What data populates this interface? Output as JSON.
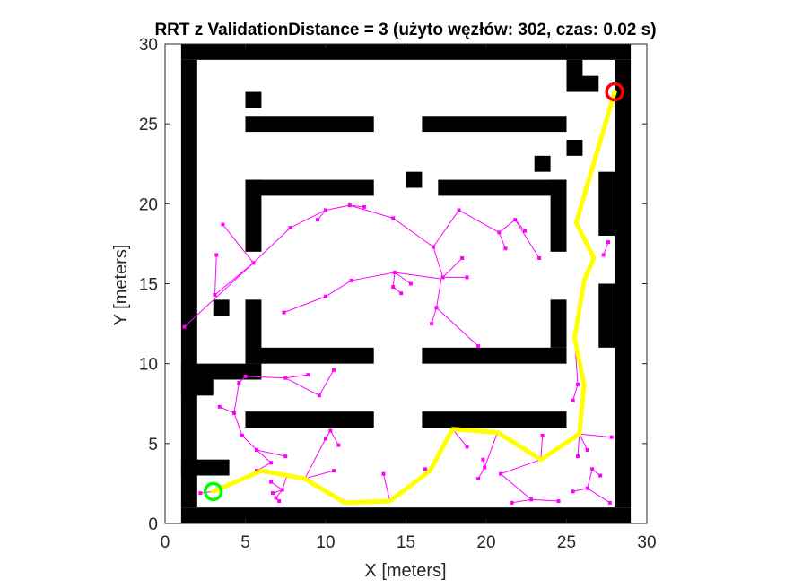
{
  "chart_data": {
    "type": "scatter",
    "title": "RRT z ValidationDistance = 3 (użyto węzłów: 302, czas: 0.02 s)",
    "xlabel": "X [meters]",
    "ylabel": "Y [meters]",
    "xlim": [
      0,
      30
    ],
    "ylim": [
      0,
      30
    ],
    "x_ticks": [
      "0",
      "5",
      "10",
      "15",
      "20",
      "25",
      "30"
    ],
    "y_ticks": [
      "0",
      "5",
      "10",
      "15",
      "20",
      "25",
      "30"
    ],
    "grid": false,
    "legend": "none",
    "colors": {
      "obstacle": "#000000",
      "tree": "#ff00ff",
      "path": "#ffff00",
      "start": "#00ff00",
      "goal": "#ff0000",
      "axis": "#262626"
    },
    "start": [
      3,
      2
    ],
    "goal": [
      28,
      27
    ],
    "obstacles": [
      [
        1,
        29,
        29,
        30
      ],
      [
        1,
        0,
        29,
        1
      ],
      [
        1,
        1,
        2,
        29
      ],
      [
        28,
        1,
        29,
        29
      ],
      [
        5,
        26,
        6,
        27
      ],
      [
        5,
        24.5,
        13,
        25.5
      ],
      [
        16,
        24.5,
        25,
        25.5
      ],
      [
        25,
        27,
        26,
        29
      ],
      [
        25,
        27,
        27,
        28
      ],
      [
        25,
        23,
        26,
        24
      ],
      [
        23,
        22,
        24,
        23
      ],
      [
        15,
        21,
        16,
        22
      ],
      [
        5,
        20.5,
        13,
        21.5
      ],
      [
        17,
        20.5,
        25,
        21.5
      ],
      [
        5,
        17,
        6,
        21.5
      ],
      [
        24,
        17,
        25,
        21.5
      ],
      [
        27,
        18,
        28,
        22
      ],
      [
        3,
        13,
        4,
        14
      ],
      [
        27,
        11,
        28,
        15
      ],
      [
        5,
        10,
        6,
        14
      ],
      [
        24,
        11,
        25,
        14
      ],
      [
        5,
        10,
        13,
        11
      ],
      [
        16,
        10,
        25,
        11
      ],
      [
        1,
        9,
        6,
        10
      ],
      [
        1,
        8,
        3,
        9
      ],
      [
        5,
        6,
        13,
        7
      ],
      [
        16,
        6,
        25,
        7
      ],
      [
        1,
        3,
        4,
        4
      ]
    ],
    "path": [
      [
        3,
        2
      ],
      [
        6,
        3.3
      ],
      [
        8.7,
        2.8
      ],
      [
        11.2,
        1.3
      ],
      [
        14,
        1.4
      ],
      [
        16.5,
        3.3
      ],
      [
        17.9,
        5.9
      ],
      [
        20.7,
        5.7
      ],
      [
        23.4,
        4
      ],
      [
        25.8,
        5.6
      ],
      [
        26.1,
        8.7
      ],
      [
        25.5,
        11.6
      ],
      [
        26.1,
        15.2
      ],
      [
        26.7,
        16.6
      ],
      [
        25.6,
        18.8
      ],
      [
        28,
        27
      ]
    ],
    "tree_edges": [
      [
        [
          1.2,
          12.3
        ],
        [
          5.5,
          16.3
        ]
      ],
      [
        [
          5.5,
          16.3
        ],
        [
          7.8,
          18.5
        ]
      ],
      [
        [
          7.8,
          18.5
        ],
        [
          10,
          19.6
        ]
      ],
      [
        [
          10,
          19.6
        ],
        [
          11.5,
          19.9
        ]
      ],
      [
        [
          11.5,
          19.9
        ],
        [
          14.2,
          19.1
        ]
      ],
      [
        [
          14.2,
          19.1
        ],
        [
          16.7,
          17.3
        ]
      ],
      [
        [
          16.7,
          17.3
        ],
        [
          17.3,
          15.4
        ]
      ],
      [
        [
          17.3,
          15.4
        ],
        [
          18.5,
          16.6
        ]
      ],
      [
        [
          17.3,
          15.4
        ],
        [
          18.8,
          15.4
        ]
      ],
      [
        [
          16.7,
          17.3
        ],
        [
          18.3,
          19.6
        ]
      ],
      [
        [
          18.3,
          19.6
        ],
        [
          20.8,
          18.2
        ]
      ],
      [
        [
          20.8,
          18.2
        ],
        [
          21.2,
          17.2
        ]
      ],
      [
        [
          20.8,
          18.2
        ],
        [
          21.8,
          19
        ]
      ],
      [
        [
          21.8,
          19
        ],
        [
          22.4,
          18.3
        ]
      ],
      [
        [
          21.8,
          19
        ],
        [
          23.3,
          16.6
        ]
      ],
      [
        [
          11.5,
          19.9
        ],
        [
          12.4,
          19.8
        ]
      ],
      [
        [
          10,
          19.6
        ],
        [
          9.5,
          19
        ]
      ],
      [
        [
          5.5,
          16.3
        ],
        [
          3.1,
          14.3
        ]
      ],
      [
        [
          5.5,
          16.3
        ],
        [
          3.6,
          18.7
        ]
      ],
      [
        [
          3.1,
          14.3
        ],
        [
          3.2,
          16.8
        ]
      ],
      [
        [
          7.4,
          13.2
        ],
        [
          10,
          14.2
        ]
      ],
      [
        [
          10,
          14.2
        ],
        [
          11.6,
          15.2
        ]
      ],
      [
        [
          11.6,
          15.2
        ],
        [
          14.3,
          15.7
        ]
      ],
      [
        [
          14.3,
          15.7
        ],
        [
          17.2,
          15.3
        ]
      ],
      [
        [
          14.3,
          15.7
        ],
        [
          14.2,
          14.8
        ]
      ],
      [
        [
          14.2,
          14.8
        ],
        [
          14.7,
          14.4
        ]
      ],
      [
        [
          14.3,
          15.7
        ],
        [
          15.3,
          15
        ]
      ],
      [
        [
          17.2,
          15.3
        ],
        [
          16.9,
          13.5
        ]
      ],
      [
        [
          16.9,
          13.5
        ],
        [
          16.6,
          12.5
        ]
      ],
      [
        [
          16.9,
          13.5
        ],
        [
          19.5,
          11.1
        ]
      ],
      [
        [
          5,
          9.2
        ],
        [
          7.5,
          9.1
        ]
      ],
      [
        [
          7.5,
          9.1
        ],
        [
          8.9,
          9.3
        ]
      ],
      [
        [
          7.5,
          9.1
        ],
        [
          9.6,
          8
        ]
      ],
      [
        [
          9.6,
          8
        ],
        [
          10.5,
          9.6
        ]
      ],
      [
        [
          5,
          9.2
        ],
        [
          4.6,
          8.8
        ]
      ],
      [
        [
          4.6,
          8.8
        ],
        [
          4.3,
          6.9
        ]
      ],
      [
        [
          4.3,
          6.9
        ],
        [
          4.8,
          5.5
        ]
      ],
      [
        [
          4.3,
          6.9
        ],
        [
          3.4,
          7.3
        ]
      ],
      [
        [
          4.8,
          5.5
        ],
        [
          5.7,
          4.6
        ]
      ],
      [
        [
          5.7,
          4.6
        ],
        [
          7.5,
          4.2
        ]
      ],
      [
        [
          5.7,
          4.6
        ],
        [
          6.6,
          3.8
        ]
      ],
      [
        [
          6.6,
          3.8
        ],
        [
          5.7,
          3.3
        ]
      ],
      [
        [
          6.6,
          2.6
        ],
        [
          7.3,
          2.1
        ]
      ],
      [
        [
          7.3,
          2.1
        ],
        [
          7.6,
          3
        ]
      ],
      [
        [
          7.3,
          2.1
        ],
        [
          6.9,
          1.6
        ]
      ],
      [
        [
          6.9,
          1.6
        ],
        [
          7.1,
          1.4
        ]
      ],
      [
        [
          7.3,
          2.1
        ],
        [
          6.7,
          1.9
        ]
      ],
      [
        [
          8.7,
          2.8
        ],
        [
          10.5,
          3.3
        ]
      ],
      [
        [
          8.7,
          2.8
        ],
        [
          10,
          5.3
        ]
      ],
      [
        [
          10,
          5.3
        ],
        [
          10.3,
          5.8
        ]
      ],
      [
        [
          10.3,
          5.8
        ],
        [
          10.8,
          4.9
        ]
      ],
      [
        [
          14,
          1.4
        ],
        [
          13.6,
          3.1
        ]
      ],
      [
        [
          16.5,
          3.3
        ],
        [
          16.2,
          3.4
        ]
      ],
      [
        [
          17.9,
          5.9
        ],
        [
          18.8,
          4.8
        ]
      ],
      [
        [
          20.7,
          5.7
        ],
        [
          19.9,
          3.5
        ]
      ],
      [
        [
          19.9,
          3.5
        ],
        [
          19.5,
          2.8
        ]
      ],
      [
        [
          19.9,
          3.5
        ],
        [
          19.8,
          4
        ]
      ],
      [
        [
          23.4,
          4
        ],
        [
          20.9,
          3.1
        ]
      ],
      [
        [
          20.9,
          3.1
        ],
        [
          22.8,
          1.5
        ]
      ],
      [
        [
          22.8,
          1.5
        ],
        [
          21.6,
          1.3
        ]
      ],
      [
        [
          22.8,
          1.5
        ],
        [
          24.5,
          1.4
        ]
      ],
      [
        [
          23.4,
          4
        ],
        [
          23.5,
          5.5
        ]
      ],
      [
        [
          25.8,
          5.6
        ],
        [
          25.7,
          4.2
        ]
      ],
      [
        [
          25.8,
          5.6
        ],
        [
          27.8,
          5.4
        ]
      ],
      [
        [
          25.8,
          5.6
        ],
        [
          26.3,
          4.6
        ]
      ],
      [
        [
          26.3,
          2.2
        ],
        [
          27.7,
          1.3
        ]
      ],
      [
        [
          26.3,
          2.2
        ],
        [
          25.4,
          2
        ]
      ],
      [
        [
          26.3,
          2.2
        ],
        [
          26.6,
          3.4
        ]
      ],
      [
        [
          26.6,
          3.4
        ],
        [
          27.1,
          3
        ]
      ],
      [
        [
          25.5,
          11.6
        ],
        [
          25.7,
          8.7
        ]
      ],
      [
        [
          25.7,
          8.7
        ],
        [
          25.4,
          7.7
        ]
      ],
      [
        [
          27.3,
          16.8
        ],
        [
          27.6,
          17.6
        ]
      ],
      [
        [
          3,
          2
        ],
        [
          2.2,
          1.9
        ]
      ]
    ],
    "tree_nodes": [
      [
        1.2,
        12.3
      ],
      [
        3.1,
        14.3
      ],
      [
        3.6,
        18.7
      ],
      [
        3.2,
        16.8
      ],
      [
        5.5,
        16.3
      ],
      [
        7.8,
        18.5
      ],
      [
        10,
        19.6
      ],
      [
        11.5,
        19.9
      ],
      [
        12.4,
        19.8
      ],
      [
        9.5,
        19
      ],
      [
        14.2,
        19.1
      ],
      [
        16.7,
        17.3
      ],
      [
        17.3,
        15.4
      ],
      [
        18.5,
        16.6
      ],
      [
        18.8,
        15.4
      ],
      [
        18.3,
        19.6
      ],
      [
        20.8,
        18.2
      ],
      [
        21.2,
        17.2
      ],
      [
        21.8,
        19
      ],
      [
        22.4,
        18.3
      ],
      [
        23.3,
        16.6
      ],
      [
        7.4,
        13.2
      ],
      [
        10,
        14.2
      ],
      [
        11.6,
        15.2
      ],
      [
        14.3,
        15.7
      ],
      [
        14.2,
        14.8
      ],
      [
        14.7,
        14.4
      ],
      [
        15.3,
        15
      ],
      [
        16.9,
        13.5
      ],
      [
        16.6,
        12.5
      ],
      [
        19.5,
        11.1
      ],
      [
        5,
        9.2
      ],
      [
        7.5,
        9.1
      ],
      [
        8.9,
        9.3
      ],
      [
        9.6,
        8
      ],
      [
        10.5,
        9.6
      ],
      [
        4.6,
        8.8
      ],
      [
        4.3,
        6.9
      ],
      [
        3.4,
        7.3
      ],
      [
        4.8,
        5.5
      ],
      [
        5.7,
        4.6
      ],
      [
        7.5,
        4.2
      ],
      [
        6.6,
        3.8
      ],
      [
        5.7,
        3.3
      ],
      [
        6.6,
        2.6
      ],
      [
        7.3,
        2.1
      ],
      [
        7.6,
        3
      ],
      [
        6.9,
        1.6
      ],
      [
        7.1,
        1.4
      ],
      [
        6.7,
        1.9
      ],
      [
        10.5,
        3.3
      ],
      [
        10,
        5.3
      ],
      [
        10.3,
        5.8
      ],
      [
        10.8,
        4.9
      ],
      [
        13.6,
        3.1
      ],
      [
        16.2,
        3.4
      ],
      [
        18.8,
        4.8
      ],
      [
        19.9,
        3.5
      ],
      [
        19.5,
        2.8
      ],
      [
        19.8,
        4
      ],
      [
        20.9,
        3.1
      ],
      [
        22.8,
        1.5
      ],
      [
        21.6,
        1.3
      ],
      [
        24.5,
        1.4
      ],
      [
        23.5,
        5.5
      ],
      [
        25.7,
        4.2
      ],
      [
        27.8,
        5.4
      ],
      [
        26.3,
        4.6
      ],
      [
        26.3,
        2.2
      ],
      [
        27.7,
        1.3
      ],
      [
        25.4,
        2
      ],
      [
        26.6,
        3.4
      ],
      [
        27.1,
        3
      ],
      [
        25.7,
        8.7
      ],
      [
        25.4,
        7.7
      ],
      [
        27.3,
        16.8
      ],
      [
        27.6,
        17.6
      ],
      [
        2.2,
        1.9
      ]
    ]
  }
}
